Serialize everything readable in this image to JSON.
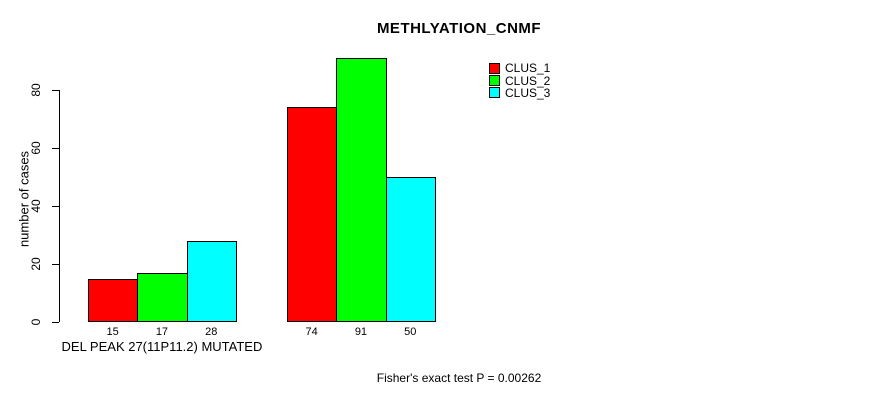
{
  "chart_data": {
    "type": "bar",
    "title": "METHLYATION_CNMF",
    "ylabel": "number of cases",
    "xlabel": "",
    "yticks": [
      0,
      20,
      40,
      60,
      80
    ],
    "ylim": [
      0,
      91
    ],
    "grid": false,
    "legend_position": "top-right",
    "categories": [
      "DEL PEAK 27(11P11.2) MUTATED",
      ""
    ],
    "series": [
      {
        "name": "CLUS_1",
        "color": "#ff0000",
        "values": [
          15,
          74
        ]
      },
      {
        "name": "CLUS_2",
        "color": "#00ff00",
        "values": [
          17,
          91
        ]
      },
      {
        "name": "CLUS_3",
        "color": "#00ffff",
        "values": [
          28,
          50
        ]
      }
    ],
    "bar_value_labels_shown": true,
    "footnote": "Fisher's exact test P = 0.00262"
  }
}
